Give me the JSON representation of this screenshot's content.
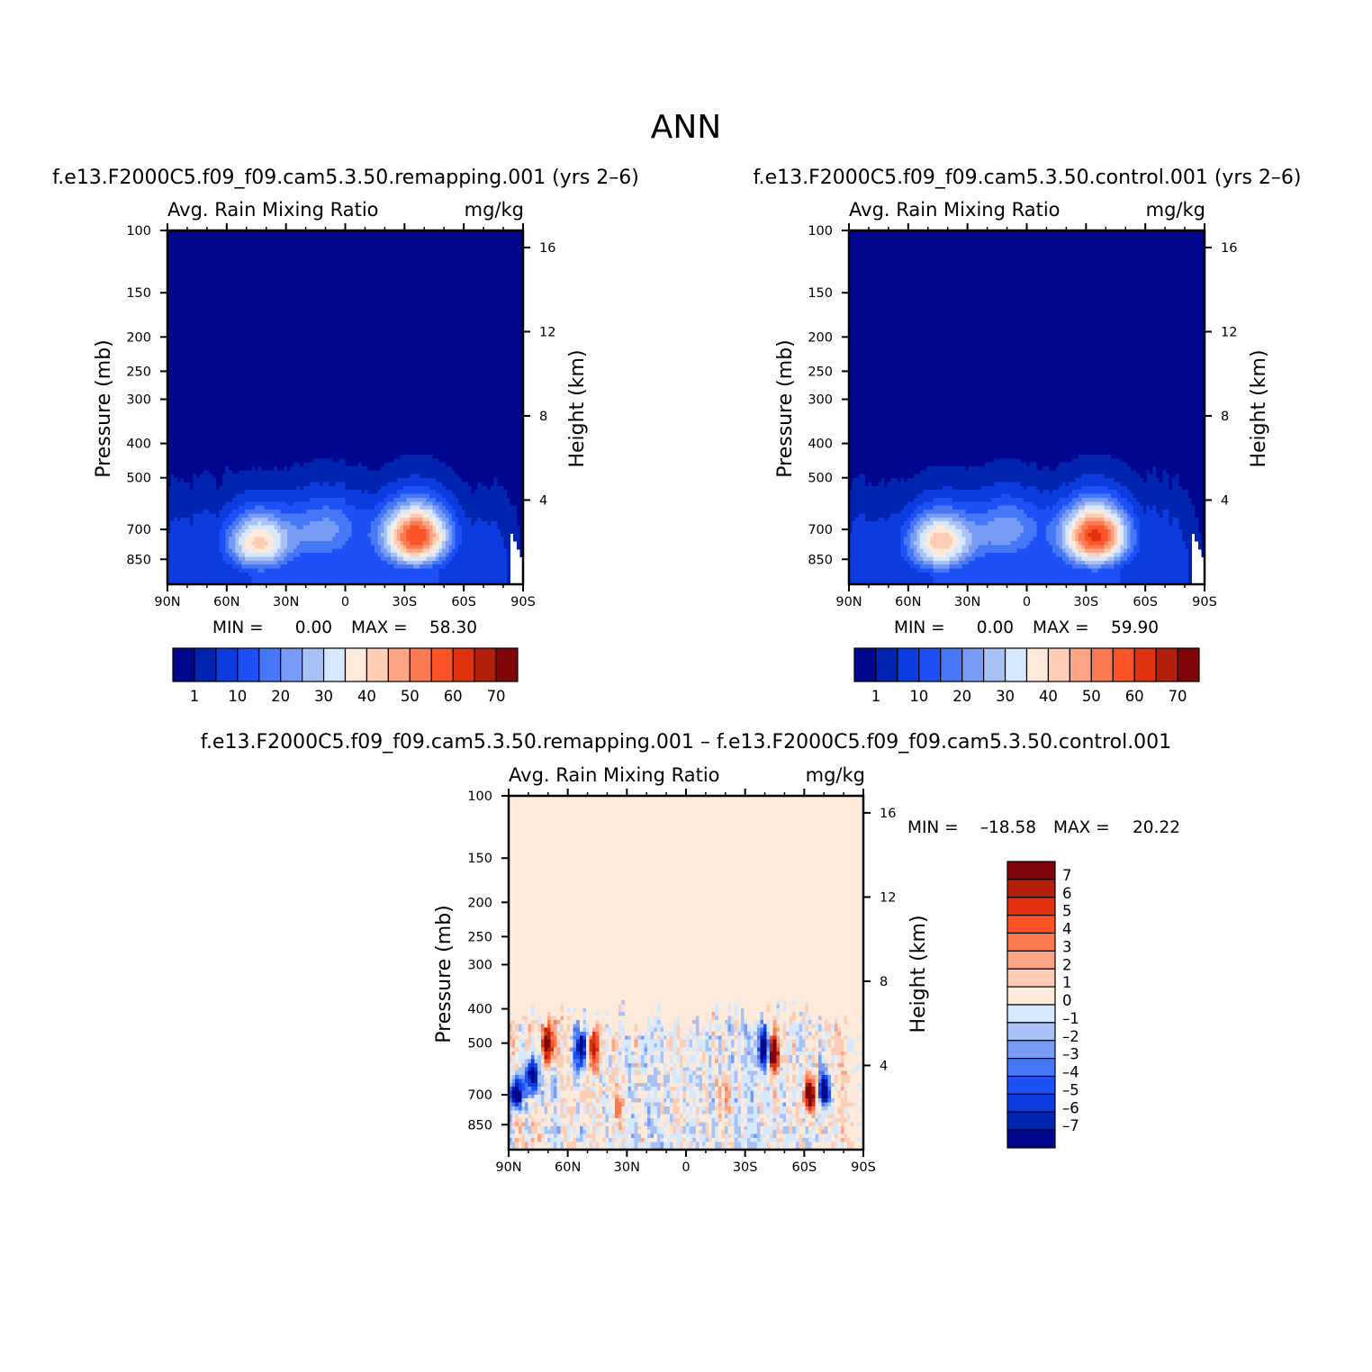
{
  "figure": {
    "title": "ANN"
  },
  "colors": {
    "abs_scale": [
      "#00078c",
      "#0023b0",
      "#0c3ce0",
      "#1d50f7",
      "#4677f7",
      "#789cf5",
      "#a9c2f6",
      "#d6e8fd",
      "#feeadb",
      "#fecdb5",
      "#fca484",
      "#fc7a51",
      "#fb5428",
      "#e0320e",
      "#b21f0a",
      "#7e0608"
    ],
    "diff_scale": [
      "#00078c",
      "#0023b0",
      "#0c3ce0",
      "#1d50f7",
      "#4677f7",
      "#789cf5",
      "#a9c2f6",
      "#d6e8fd",
      "#feeadb",
      "#fecdb5",
      "#fca484",
      "#fc7a51",
      "#fb5428",
      "#e0320e",
      "#b21f0a",
      "#7e0608"
    ]
  },
  "chart_data": [
    {
      "type": "heatmap",
      "subtitle": "f.e13.F2000C5.f09_f09.cam5.3.50.remapping.001  (yrs 2–6)",
      "variable": "Avg.  Rain  Mixing  Ratio",
      "units": "mg/kg",
      "ylabel": "Pressure  (mb)",
      "ylabel_right": "Height  (km)",
      "x_ticks": [
        "90N",
        "60N",
        "30N",
        "0",
        "30S",
        "60S",
        "90S"
      ],
      "x_range": [
        90,
        -90
      ],
      "y_ticks": [
        "100",
        "150",
        "200",
        "250",
        "300",
        "400",
        "500",
        "700",
        "850"
      ],
      "y_tick_values": [
        100,
        150,
        200,
        250,
        300,
        400,
        500,
        700,
        850
      ],
      "y_range": [
        100,
        1000
      ],
      "height_ticks": [
        "16",
        "12",
        "8",
        "4"
      ],
      "height_tick_values": [
        16,
        12,
        8,
        4
      ],
      "min_label": "MIN  =",
      "min_value": "0.00",
      "max_label": "MAX  =",
      "max_value": "58.30",
      "colorbar_labels": [
        "1",
        "10",
        "20",
        "30",
        "40",
        "50",
        "60",
        "70"
      ],
      "peaks": [
        {
          "lat": 44,
          "p": 760,
          "value": 40
        },
        {
          "lat": -36,
          "p": 730,
          "value": 58.3
        },
        {
          "lat": 10,
          "p": 700,
          "value": 18
        }
      ]
    },
    {
      "type": "heatmap",
      "subtitle": "f.e13.F2000C5.f09_f09.cam5.3.50.control.001  (yrs 2–6)",
      "variable": "Avg.  Rain  Mixing  Ratio",
      "units": "mg/kg",
      "ylabel": "Pressure  (mb)",
      "ylabel_right": "Height  (km)",
      "x_ticks": [
        "90N",
        "60N",
        "30N",
        "0",
        "30S",
        "60S",
        "90S"
      ],
      "x_range": [
        90,
        -90
      ],
      "y_ticks": [
        "100",
        "150",
        "200",
        "250",
        "300",
        "400",
        "500",
        "700",
        "850"
      ],
      "y_tick_values": [
        100,
        150,
        200,
        250,
        300,
        400,
        500,
        700,
        850
      ],
      "y_range": [
        100,
        1000
      ],
      "height_ticks": [
        "16",
        "12",
        "8",
        "4"
      ],
      "height_tick_values": [
        16,
        12,
        8,
        4
      ],
      "min_label": "MIN  =",
      "min_value": "0.00",
      "max_label": "MAX  =",
      "max_value": "59.90",
      "colorbar_labels": [
        "1",
        "10",
        "20",
        "30",
        "40",
        "50",
        "60",
        "70"
      ],
      "peaks": [
        {
          "lat": 44,
          "p": 760,
          "value": 42
        },
        {
          "lat": -35,
          "p": 730,
          "value": 59.9
        },
        {
          "lat": 10,
          "p": 700,
          "value": 19
        }
      ]
    },
    {
      "type": "heatmap",
      "subtitle": "f.e13.F2000C5.f09_f09.cam5.3.50.remapping.001  –  f.e13.F2000C5.f09_f09.cam5.3.50.control.001",
      "variable": "Avg.  Rain  Mixing  Ratio",
      "units": "mg/kg",
      "ylabel": "Pressure  (mb)",
      "ylabel_right": "Height  (km)",
      "x_ticks": [
        "90N",
        "60N",
        "30N",
        "0",
        "30S",
        "60S",
        "90S"
      ],
      "x_range": [
        90,
        -90
      ],
      "y_ticks": [
        "100",
        "150",
        "200",
        "250",
        "300",
        "400",
        "500",
        "700",
        "850"
      ],
      "y_tick_values": [
        100,
        150,
        200,
        250,
        300,
        400,
        500,
        700,
        850
      ],
      "y_range": [
        100,
        1000
      ],
      "height_ticks": [
        "16",
        "12",
        "8",
        "4"
      ],
      "height_tick_values": [
        16,
        12,
        8,
        4
      ],
      "min_label": "MIN  =",
      "min_value": "–18.58",
      "max_label": "MAX  =",
      "max_value": "20.22",
      "colorbar_labels": [
        "7",
        "6",
        "5",
        "4",
        "3",
        "2",
        "1",
        "0",
        "–1",
        "–2",
        "–3",
        "–4",
        "–5",
        "–6",
        "–7"
      ],
      "features": [
        {
          "lat": -40,
          "p": 520,
          "value": -7
        },
        {
          "lat": -44,
          "p": 530,
          "value": 7
        },
        {
          "lat": 53,
          "p": 520,
          "value": -6
        },
        {
          "lat": 47,
          "p": 520,
          "value": 4
        },
        {
          "lat": 86,
          "p": 700,
          "value": -7
        },
        {
          "lat": 78,
          "p": 620,
          "value": -6
        },
        {
          "lat": 70,
          "p": 500,
          "value": 6
        },
        {
          "lat": -63,
          "p": 700,
          "value": 7
        },
        {
          "lat": -70,
          "p": 680,
          "value": -6
        },
        {
          "lat": 34,
          "p": 760,
          "value": 2
        },
        {
          "lat": -20,
          "p": 700,
          "value": 2
        }
      ]
    }
  ]
}
